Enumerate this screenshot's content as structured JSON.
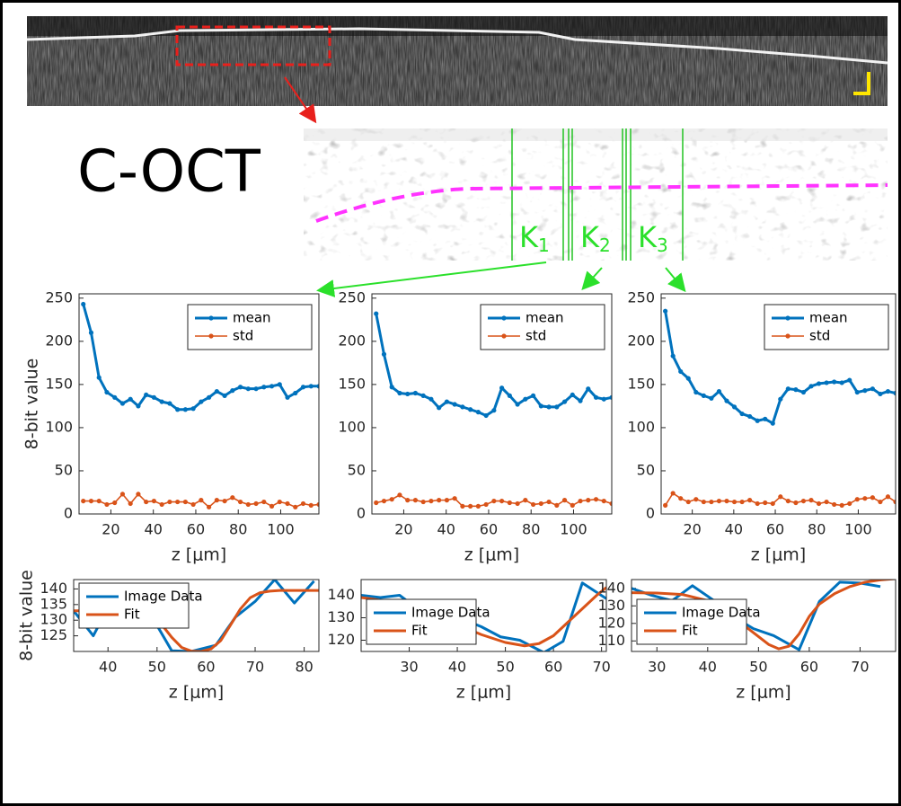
{
  "figure": {
    "label": "C-OCT",
    "kernels": [
      {
        "letter": "K",
        "sub": "1"
      },
      {
        "letter": "K",
        "sub": "2"
      },
      {
        "letter": "K",
        "sub": "3"
      }
    ]
  },
  "chart_data": [
    {
      "type": "line",
      "markers": true,
      "ylabel": "8-bit value",
      "xlabel": "z [μm]",
      "legend": "upper right",
      "x": [
        7,
        10.7,
        14.4,
        18.1,
        21.8,
        25.5,
        29.2,
        32.9,
        36.6,
        40.3,
        44,
        47.7,
        51.4,
        55.1,
        58.8,
        62.5,
        66.2,
        69.9,
        73.6,
        77.3,
        81,
        84.7,
        88.4,
        92.1,
        95.8,
        99.5,
        103.2,
        106.9,
        110.6,
        114.3,
        118
      ],
      "series": [
        {
          "name": "mean",
          "color": "#0072BD",
          "values": [
            243,
            210,
            158,
            141,
            135,
            128,
            133,
            125,
            138,
            135,
            130,
            128,
            121,
            121,
            122,
            130,
            135,
            142,
            137,
            143,
            147,
            145,
            145,
            147,
            148,
            150,
            135,
            140,
            147,
            148,
            148
          ]
        },
        {
          "name": "std",
          "color": "#D95319",
          "values": [
            15,
            15,
            15,
            11,
            13,
            23,
            12,
            23,
            14,
            15,
            11,
            14,
            14,
            14,
            11,
            16,
            8,
            16,
            15,
            19,
            14,
            11,
            12,
            14,
            9,
            14,
            12,
            8,
            12,
            10,
            11
          ]
        }
      ],
      "xlim": [
        5,
        118
      ],
      "ylim": [
        0,
        255
      ],
      "xticks": [
        20,
        40,
        60,
        80,
        100
      ],
      "yticks": [
        0,
        50,
        100,
        150,
        200,
        250
      ]
    },
    {
      "type": "line",
      "markers": true,
      "xlabel": "z [μm]",
      "legend": "upper right",
      "x": [
        7,
        10.7,
        14.4,
        18.1,
        21.8,
        25.5,
        29.2,
        32.9,
        36.6,
        40.3,
        44,
        47.7,
        51.4,
        55.1,
        58.8,
        62.5,
        66.2,
        69.9,
        73.6,
        77.3,
        81,
        84.7,
        88.4,
        92.1,
        95.8,
        99.5,
        103.2,
        106.9,
        110.6,
        114.3,
        118
      ],
      "series": [
        {
          "name": "mean",
          "color": "#0072BD",
          "values": [
            232,
            185,
            147,
            140,
            139,
            140,
            137,
            133,
            123,
            130,
            127,
            124,
            121,
            118,
            114,
            120,
            146,
            137,
            127,
            133,
            137,
            125,
            124,
            124,
            130,
            138,
            131,
            145,
            135,
            133,
            135
          ]
        },
        {
          "name": "std",
          "color": "#D95319",
          "values": [
            13,
            15,
            17,
            22,
            16,
            16,
            14,
            15,
            16,
            16,
            18,
            9,
            9,
            9,
            11,
            15,
            15,
            13,
            12,
            16,
            11,
            12,
            14,
            10,
            16,
            10,
            15,
            16,
            17,
            15,
            12
          ]
        }
      ],
      "xlim": [
        5,
        118
      ],
      "ylim": [
        0,
        255
      ],
      "xticks": [
        20,
        40,
        60,
        80,
        100
      ],
      "yticks": [
        0,
        50,
        100,
        150,
        200,
        250
      ]
    },
    {
      "type": "line",
      "markers": true,
      "xlabel": "z [μm]",
      "legend": "upper right",
      "x": [
        7,
        10.7,
        14.4,
        18.1,
        21.8,
        25.5,
        29.2,
        32.9,
        36.6,
        40.3,
        44,
        47.7,
        51.4,
        55.1,
        58.8,
        62.5,
        66.2,
        69.9,
        73.6,
        77.3,
        81,
        84.7,
        88.4,
        92.1,
        95.8,
        99.5,
        103.2,
        106.9,
        110.6,
        114.3,
        118
      ],
      "series": [
        {
          "name": "mean",
          "color": "#0072BD",
          "values": [
            235,
            183,
            165,
            157,
            141,
            137,
            134,
            142,
            131,
            124,
            116,
            113,
            108,
            110,
            105,
            133,
            145,
            144,
            141,
            148,
            151,
            152,
            153,
            152,
            155,
            141,
            143,
            145,
            139,
            142,
            140
          ]
        },
        {
          "name": "std",
          "color": "#D95319",
          "values": [
            10,
            24,
            18,
            14,
            17,
            14,
            14,
            15,
            15,
            14,
            14,
            16,
            12,
            13,
            12,
            20,
            15,
            13,
            15,
            16,
            12,
            14,
            11,
            10,
            12,
            17,
            18,
            19,
            14,
            20,
            14
          ]
        }
      ],
      "xlim": [
        5,
        118
      ],
      "ylim": [
        0,
        255
      ],
      "xticks": [
        20,
        40,
        60,
        80,
        100
      ],
      "yticks": [
        0,
        50,
        100,
        150,
        200,
        250
      ]
    },
    {
      "type": "line",
      "ylabel": "8-bit value",
      "xlabel": "z [μm]",
      "legend": "upper left",
      "series": [
        {
          "name": "Image Data",
          "color": "#0072BD",
          "x": [
            33,
            37,
            41,
            45,
            49,
            53,
            57,
            62,
            66,
            70,
            74,
            78,
            82
          ],
          "values": [
            133,
            125,
            137,
            135,
            131,
            120.2,
            120,
            122,
            131,
            136,
            143,
            135.5,
            142.5
          ]
        },
        {
          "name": "Fit",
          "color": "#D95319",
          "x": [
            33,
            35,
            37,
            39,
            41,
            43,
            45,
            47,
            49,
            51,
            53,
            55,
            57,
            59,
            61,
            63,
            65,
            67,
            69,
            71,
            73,
            75,
            77,
            79,
            81,
            83
          ],
          "values": [
            133,
            133,
            133,
            133,
            133,
            132.9,
            132.8,
            132.4,
            131.3,
            128.5,
            124.5,
            121.3,
            120.1,
            120,
            120.8,
            123.5,
            128.5,
            133.6,
            137.2,
            138.8,
            139.3,
            139.5,
            139.5,
            139.5,
            139.5,
            139.5
          ]
        }
      ],
      "xlim": [
        33,
        83
      ],
      "ylim": [
        120,
        143
      ],
      "xticks": [
        40,
        50,
        60,
        70,
        80
      ],
      "yticks": [
        125,
        130,
        135,
        140
      ]
    },
    {
      "type": "line",
      "xlabel": "z [μm]",
      "legend": "lower left",
      "series": [
        {
          "name": "Image Data",
          "color": "#0072BD",
          "x": [
            20,
            24,
            28,
            33,
            36,
            41,
            45,
            49,
            53,
            58,
            62,
            66,
            71
          ],
          "values": [
            140,
            139,
            140,
            132,
            120,
            129.5,
            126,
            121.5,
            120,
            114.5,
            119.5,
            145.5,
            138.5
          ]
        },
        {
          "name": "Fit",
          "color": "#D95319",
          "x": [
            20,
            25,
            30,
            35,
            40,
            45,
            50,
            54,
            57,
            60,
            63,
            66,
            69,
            71
          ],
          "values": [
            139,
            137.5,
            135,
            131.5,
            127,
            122.5,
            119,
            117.5,
            118.5,
            122,
            128,
            134,
            140,
            143.5
          ]
        }
      ],
      "xlim": [
        20,
        71
      ],
      "ylim": [
        115,
        147
      ],
      "xticks": [
        30,
        40,
        50,
        60,
        70
      ],
      "yticks": [
        120,
        130,
        140
      ]
    },
    {
      "type": "line",
      "xlabel": "z [μm]",
      "legend": "lower left",
      "series": [
        {
          "name": "Image Data",
          "color": "#0072BD",
          "x": [
            25,
            29,
            33,
            37,
            41,
            45,
            49,
            53,
            58,
            62,
            66,
            70,
            74
          ],
          "values": [
            140,
            136,
            133,
            141.5,
            133.5,
            124,
            117,
            113,
            105,
            132.5,
            143.5,
            143,
            141
          ]
        },
        {
          "name": "Fit",
          "color": "#D95319",
          "x": [
            25,
            30,
            35,
            40,
            44,
            48,
            52,
            54,
            56,
            58,
            60,
            62,
            65,
            68,
            71,
            74,
            77
          ],
          "values": [
            137.5,
            137.3,
            136.5,
            133,
            126,
            117,
            108,
            105.5,
            107,
            114,
            124,
            131,
            137,
            141,
            143.5,
            144.8,
            145.5
          ]
        }
      ],
      "xlim": [
        25,
        77
      ],
      "ylim": [
        104,
        145
      ],
      "xticks": [
        30,
        40,
        50,
        60,
        70
      ],
      "yticks": [
        110,
        120,
        130,
        140
      ]
    }
  ]
}
